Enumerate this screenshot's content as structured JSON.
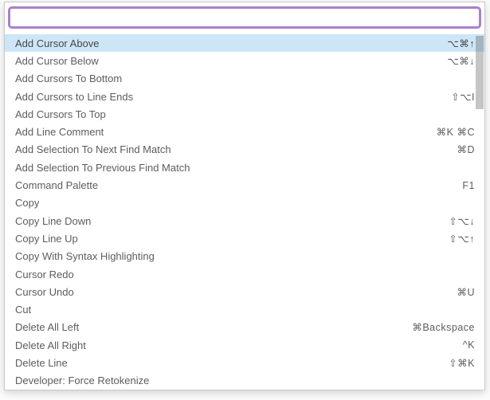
{
  "panel": {
    "name": "editor-command-palette"
  },
  "search": {
    "value": "",
    "placeholder": ""
  },
  "list": {
    "selected_index": 0,
    "items": [
      {
        "label": "Add Cursor Above",
        "shortcut": "⌥⌘↑"
      },
      {
        "label": "Add Cursor Below",
        "shortcut": "⌥⌘↓"
      },
      {
        "label": "Add Cursors To Bottom",
        "shortcut": ""
      },
      {
        "label": "Add Cursors to Line Ends",
        "shortcut": "⇧⌥I"
      },
      {
        "label": "Add Cursors To Top",
        "shortcut": ""
      },
      {
        "label": "Add Line Comment",
        "shortcut": "⌘K ⌘C"
      },
      {
        "label": "Add Selection To Next Find Match",
        "shortcut": "⌘D"
      },
      {
        "label": "Add Selection To Previous Find Match",
        "shortcut": ""
      },
      {
        "label": "Command Palette",
        "shortcut": "F1"
      },
      {
        "label": "Copy",
        "shortcut": ""
      },
      {
        "label": "Copy Line Down",
        "shortcut": "⇧⌥↓"
      },
      {
        "label": "Copy Line Up",
        "shortcut": "⇧⌥↑"
      },
      {
        "label": "Copy With Syntax Highlighting",
        "shortcut": ""
      },
      {
        "label": "Cursor Redo",
        "shortcut": ""
      },
      {
        "label": "Cursor Undo",
        "shortcut": "⌘U"
      },
      {
        "label": "Cut",
        "shortcut": ""
      },
      {
        "label": "Delete All Left",
        "shortcut": "⌘Backspace"
      },
      {
        "label": "Delete All Right",
        "shortcut": "^K"
      },
      {
        "label": "Delete Line",
        "shortcut": "⇧⌘K"
      },
      {
        "label": "Developer: Force Retokenize",
        "shortcut": ""
      }
    ]
  },
  "colors": {
    "accent": "#ab80c8",
    "highlight": "#cde6f7",
    "text": "#5d5d5d",
    "panel_background": "#ffffff",
    "panel_border": "#c9c9c9"
  }
}
